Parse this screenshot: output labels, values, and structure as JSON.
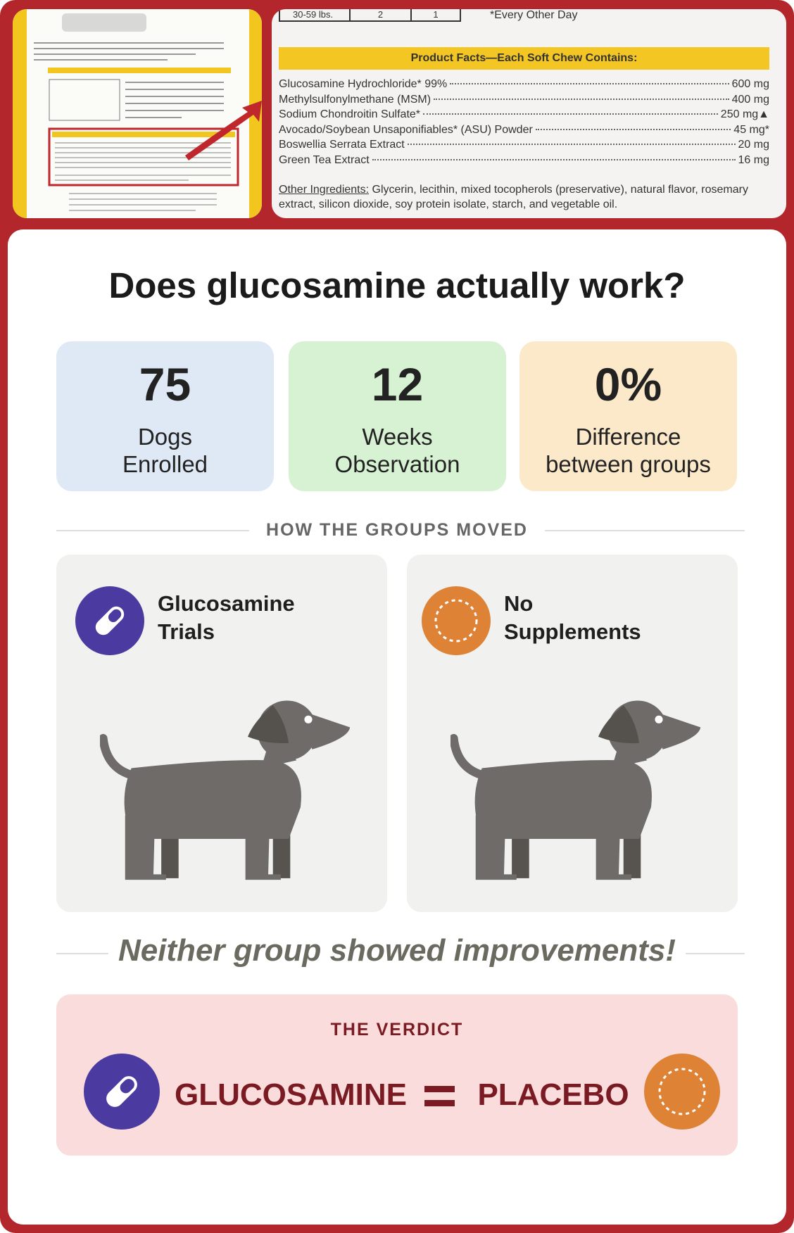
{
  "label_panel": {
    "dosage_row": [
      "30-59 lbs.",
      "2",
      "1"
    ],
    "dosage_note": "*Every Other Day",
    "facts_heading": "Product Facts—Each Soft Chew Contains:",
    "ingredients": [
      {
        "name": "Glucosamine Hydrochloride* 99%",
        "amount": "600 mg"
      },
      {
        "name": "Methylsulfonylmethane (MSM)",
        "amount": "400 mg"
      },
      {
        "name": "Sodium Chondroitin Sulfate*",
        "amount": "250 mg▲"
      },
      {
        "name": "Avocado/Soybean Unsaponifiables* (ASU) Powder",
        "amount": "45 mg*"
      },
      {
        "name": "Boswellia Serrata Extract",
        "amount": "20 mg"
      },
      {
        "name": "Green Tea Extract",
        "amount": "16 mg"
      }
    ],
    "other_label": "Other Ingredients:",
    "other_text": "Glycerin, lecithin, mixed tocopherols (preservative), natural flavor, rosemary extract, silicon dioxide, soy protein isolate, starch, and vegetable oil."
  },
  "header": {
    "title": "Does glucosamine actually work?"
  },
  "stats": [
    {
      "value": "75",
      "label": [
        "Dogs",
        "Enrolled"
      ]
    },
    {
      "value": "12",
      "label": [
        "Weeks",
        "Observation"
      ]
    },
    {
      "value": "0%",
      "label": [
        "Difference",
        "between groups"
      ]
    }
  ],
  "section_heading": "HOW THE GROUPS MOVED",
  "groups": [
    {
      "label": [
        "Glucosamine",
        "Trials"
      ]
    },
    {
      "label": [
        "No",
        "Supplements"
      ]
    }
  ],
  "conclusion": "Neither group showed improvements!",
  "verdict": {
    "heading": "THE VERDICT",
    "left": "GLUCOSAMINE",
    "right": "PLACEBO"
  }
}
